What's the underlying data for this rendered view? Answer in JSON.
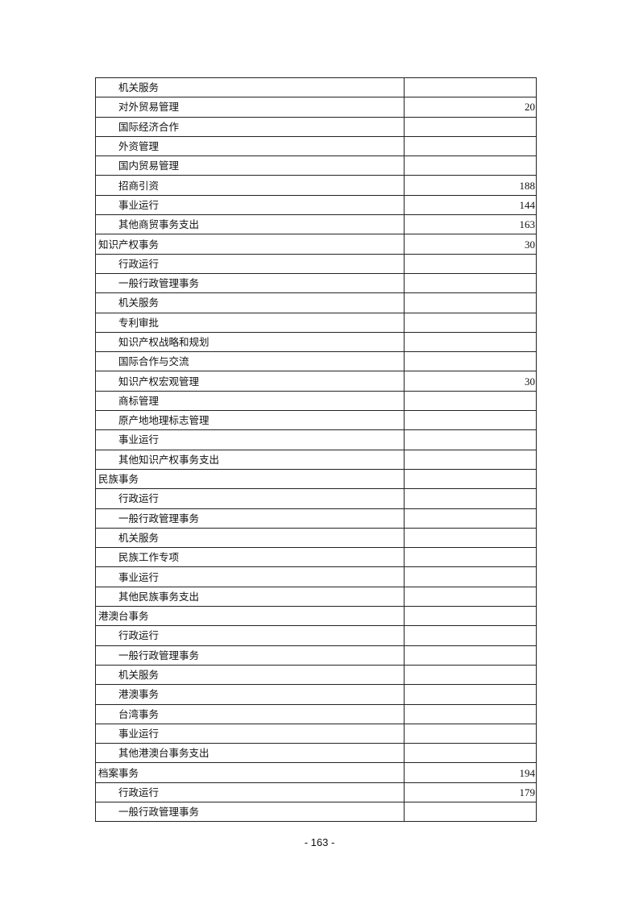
{
  "table": {
    "rows": [
      {
        "name": "机关服务",
        "value": "",
        "level": 2
      },
      {
        "name": "对外贸易管理",
        "value": "20",
        "level": 2
      },
      {
        "name": "国际经济合作",
        "value": "",
        "level": 2
      },
      {
        "name": "外资管理",
        "value": "",
        "level": 2
      },
      {
        "name": "国内贸易管理",
        "value": "",
        "level": 2
      },
      {
        "name": "招商引资",
        "value": "188",
        "level": 2
      },
      {
        "name": "事业运行",
        "value": "144",
        "level": 2
      },
      {
        "name": "其他商贸事务支出",
        "value": "163",
        "level": 2
      },
      {
        "name": "知识产权事务",
        "value": "30",
        "level": 1
      },
      {
        "name": "行政运行",
        "value": "",
        "level": 2
      },
      {
        "name": "一般行政管理事务",
        "value": "",
        "level": 2
      },
      {
        "name": "机关服务",
        "value": "",
        "level": 2
      },
      {
        "name": "专利审批",
        "value": "",
        "level": 2
      },
      {
        "name": "知识产权战略和规划",
        "value": "",
        "level": 2
      },
      {
        "name": "国际合作与交流",
        "value": "",
        "level": 2
      },
      {
        "name": "知识产权宏观管理",
        "value": "30",
        "level": 2
      },
      {
        "name": "商标管理",
        "value": "",
        "level": 2
      },
      {
        "name": "原产地地理标志管理",
        "value": "",
        "level": 2
      },
      {
        "name": "事业运行",
        "value": "",
        "level": 2
      },
      {
        "name": "其他知识产权事务支出",
        "value": "",
        "level": 2
      },
      {
        "name": "民族事务",
        "value": "",
        "level": 1
      },
      {
        "name": "行政运行",
        "value": "",
        "level": 2
      },
      {
        "name": "一般行政管理事务",
        "value": "",
        "level": 2
      },
      {
        "name": "机关服务",
        "value": "",
        "level": 2
      },
      {
        "name": "民族工作专项",
        "value": "",
        "level": 2
      },
      {
        "name": "事业运行",
        "value": "",
        "level": 2
      },
      {
        "name": "其他民族事务支出",
        "value": "",
        "level": 2
      },
      {
        "name": "港澳台事务",
        "value": "",
        "level": 1
      },
      {
        "name": "行政运行",
        "value": "",
        "level": 2
      },
      {
        "name": "一般行政管理事务",
        "value": "",
        "level": 2
      },
      {
        "name": "机关服务",
        "value": "",
        "level": 2
      },
      {
        "name": "港澳事务",
        "value": "",
        "level": 2
      },
      {
        "name": "台湾事务",
        "value": "",
        "level": 2
      },
      {
        "name": "事业运行",
        "value": "",
        "level": 2
      },
      {
        "name": "其他港澳台事务支出",
        "value": "",
        "level": 2
      },
      {
        "name": "档案事务",
        "value": "194",
        "level": 1
      },
      {
        "name": "行政运行",
        "value": "179",
        "level": 2
      },
      {
        "name": "一般行政管理事务",
        "value": "",
        "level": 2
      }
    ]
  },
  "footer": {
    "page_number": "- 163 -"
  }
}
